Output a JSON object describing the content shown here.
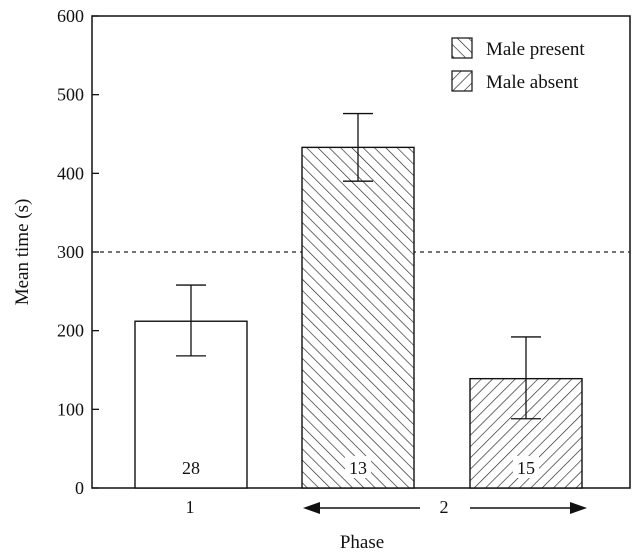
{
  "chart_data": {
    "type": "bar",
    "xlabel": "Phase",
    "ylabel": "Mean time (s)",
    "ylim": [
      0,
      600
    ],
    "yticks": [
      0,
      100,
      200,
      300,
      400,
      500,
      600
    ],
    "reference_line": {
      "y": 300,
      "style": "dashed"
    },
    "phase_labels": [
      "1",
      "2"
    ],
    "legend": {
      "placement": "top-right",
      "entries": [
        {
          "name": "Male present",
          "pattern": "backslash-hatch"
        },
        {
          "name": "Male absent",
          "pattern": "slash-hatch"
        }
      ]
    },
    "bars": [
      {
        "phase": "1",
        "series": "",
        "value": 212,
        "error_low": 168,
        "error_high": 258,
        "n": "28",
        "pattern": "none"
      },
      {
        "phase": "2",
        "series": "Male present",
        "value": 433,
        "error_low": 390,
        "error_high": 476,
        "n": "13",
        "pattern": "backslash-hatch"
      },
      {
        "phase": "2",
        "series": "Male absent",
        "value": 139,
        "error_low": 88,
        "error_high": 192,
        "n": "15",
        "pattern": "slash-hatch"
      }
    ]
  }
}
